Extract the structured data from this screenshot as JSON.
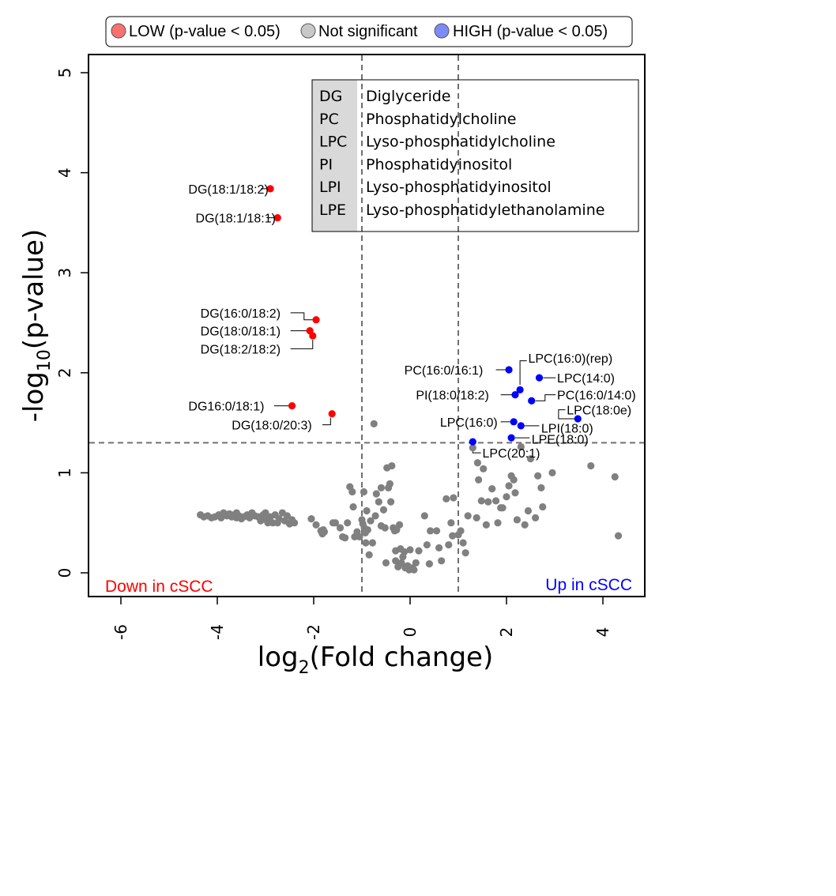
{
  "chart_data": {
    "type": "scatter",
    "title": "",
    "xlabel": "log2(Fold change)",
    "ylabel": "-log10(p-value)",
    "xlim": [
      -6.6,
      5.0
    ],
    "ylim": [
      -0.25,
      5.2
    ],
    "xticks": [
      -6,
      -4,
      -2,
      0,
      2,
      4
    ],
    "yticks": [
      0,
      1,
      2,
      3,
      4,
      5
    ],
    "thresholds": {
      "x": [
        -1,
        1
      ],
      "y": 1.3
    },
    "grid": false,
    "legend_position": "top",
    "colors": {
      "low": "#ff0000",
      "high": "#0000ff",
      "ns": "#808080",
      "low_legend": "#f87171",
      "ns_legend": "#c8c8c8",
      "high_legend": "#7b8cf8"
    },
    "legend": [
      {
        "key": "low",
        "label": "LOW (p-value  < 0.05)"
      },
      {
        "key": "ns",
        "label": "Not significant"
      },
      {
        "key": "high",
        "label": "HIGH (p-value  < 0.05)"
      }
    ],
    "corner_labels": {
      "left": "Down in cSCC",
      "right": "Up in cSCC"
    },
    "abbreviations": [
      {
        "abbr": "DG",
        "name": "Diglyceride"
      },
      {
        "abbr": "PC",
        "name": "Phosphatidylcholine"
      },
      {
        "abbr": "LPC",
        "name": "Lyso-phosphatidylcholine"
      },
      {
        "abbr": "PI",
        "name": "Phosphatidyinositol"
      },
      {
        "abbr": "LPI",
        "name": "Lyso-phosphatidyinositol"
      },
      {
        "abbr": "LPE",
        "name": "Lyso-phosphatidylethanolamine"
      }
    ],
    "series": [
      {
        "name": "LOW (p-value  < 0.05)",
        "points": [
          {
            "label": "DG(18:1/18:2)",
            "x": -2.9,
            "y": 3.84
          },
          {
            "label": "DG(18:1/18:1)",
            "x": -2.75,
            "y": 3.55
          },
          {
            "label": "DG(16:0/18:2)",
            "x": -1.95,
            "y": 2.53
          },
          {
            "label": "DG(18:0/18:1)",
            "x": -2.08,
            "y": 2.42
          },
          {
            "label": "DG(18:2/18:2)",
            "x": -2.02,
            "y": 2.37
          },
          {
            "label": "DG16:0/18:1)",
            "x": -2.45,
            "y": 1.67
          },
          {
            "label": "DG(18:0/20:3)",
            "x": -1.62,
            "y": 1.59
          }
        ]
      },
      {
        "name": "HIGH (p-value  < 0.05)",
        "points": [
          {
            "label": "PC(16:0/16:1)",
            "x": 2.05,
            "y": 2.03
          },
          {
            "label": "LPC(16:0)(rep)",
            "x": 2.28,
            "y": 1.83
          },
          {
            "label": "LPC(14:0)",
            "x": 2.68,
            "y": 1.95
          },
          {
            "label": "PI(18:0/18:2)",
            "x": 2.18,
            "y": 1.78
          },
          {
            "label": "PC(16:0/14:0)",
            "x": 2.52,
            "y": 1.72
          },
          {
            "label": "LPC(18:0e)",
            "x": 3.48,
            "y": 1.54
          },
          {
            "label": "LPC(16:0)",
            "x": 2.15,
            "y": 1.51
          },
          {
            "label": "LPI(18:0)",
            "x": 2.3,
            "y": 1.47
          },
          {
            "label": "LPE(18:0)",
            "x": 2.1,
            "y": 1.35
          },
          {
            "label": "LPC(20:1)",
            "x": 1.3,
            "y": 1.31
          }
        ]
      },
      {
        "name": "Not significant",
        "points": [
          [
            -4.35,
            0.58
          ],
          [
            -4.28,
            0.56
          ],
          [
            -4.2,
            0.57
          ],
          [
            -4.12,
            0.55
          ],
          [
            -4.05,
            0.56
          ],
          [
            -3.97,
            0.58
          ],
          [
            -3.92,
            0.55
          ],
          [
            -3.87,
            0.6
          ],
          [
            -3.8,
            0.57
          ],
          [
            -3.75,
            0.59
          ],
          [
            -3.7,
            0.56
          ],
          [
            -3.65,
            0.58
          ],
          [
            -3.6,
            0.55
          ],
          [
            -3.55,
            0.57
          ],
          [
            -3.5,
            0.54
          ],
          [
            -3.45,
            0.56
          ],
          [
            -3.38,
            0.58
          ],
          [
            -3.33,
            0.55
          ],
          [
            -3.28,
            0.6
          ],
          [
            -3.22,
            0.57
          ],
          [
            -3.15,
            0.56
          ],
          [
            -3.1,
            0.52
          ],
          [
            -3.0,
            0.6
          ],
          [
            -2.98,
            0.53
          ],
          [
            -2.9,
            0.56
          ],
          [
            -2.85,
            0.5
          ],
          [
            -2.8,
            0.58
          ],
          [
            -2.72,
            0.54
          ],
          [
            -2.65,
            0.6
          ],
          [
            -2.6,
            0.52
          ],
          [
            -2.55,
            0.57
          ],
          [
            -2.5,
            0.49
          ],
          [
            -2.45,
            0.53
          ],
          [
            -2.4,
            0.5
          ],
          [
            -2.05,
            0.54
          ],
          [
            -1.95,
            0.48
          ],
          [
            -1.85,
            0.42
          ],
          [
            -1.82,
            0.39
          ],
          [
            -1.8,
            0.43
          ],
          [
            -1.78,
            0.41
          ],
          [
            -1.6,
            0.5
          ],
          [
            -1.55,
            0.5
          ],
          [
            -1.45,
            0.45
          ],
          [
            -1.4,
            0.36
          ],
          [
            -1.35,
            0.35
          ],
          [
            -1.25,
            0.86
          ],
          [
            -1.2,
            0.81
          ],
          [
            -1.18,
            0.66
          ],
          [
            -1.15,
            0.36
          ],
          [
            -1.1,
            0.41
          ],
          [
            -1.05,
            0.36
          ],
          [
            -1.0,
            0.53
          ],
          [
            -0.98,
            0.49
          ],
          [
            -0.96,
            0.81
          ],
          [
            -0.95,
            0.45
          ],
          [
            -0.93,
            0.4
          ],
          [
            -0.92,
            0.3
          ],
          [
            -0.9,
            0.62
          ],
          [
            -0.88,
            0.43
          ],
          [
            -0.85,
            0.18
          ],
          [
            -0.82,
            0.52
          ],
          [
            -0.78,
            0.3
          ],
          [
            -0.75,
            1.49
          ],
          [
            -0.72,
            0.57
          ],
          [
            -0.7,
            0.79
          ],
          [
            -0.65,
            0.71
          ],
          [
            -0.6,
            0.85
          ],
          [
            -0.55,
            0.63
          ],
          [
            -0.52,
            0.45
          ],
          [
            -0.5,
            0.1
          ],
          [
            -0.48,
            1.05
          ],
          [
            -0.45,
            0.85
          ],
          [
            -0.42,
            0.89
          ],
          [
            -0.4,
            0.71
          ],
          [
            -0.38,
            1.07
          ],
          [
            -0.35,
            0.45
          ],
          [
            -0.32,
            0.42
          ],
          [
            -0.3,
            0.12
          ],
          [
            -0.28,
            0.43
          ],
          [
            -0.25,
            0.06
          ],
          [
            -0.22,
            0.48
          ],
          [
            -0.2,
            0.24
          ],
          [
            -0.18,
            0.1
          ],
          [
            -0.15,
            0.16
          ],
          [
            -0.12,
            0.21
          ],
          [
            -0.1,
            0.05
          ],
          [
            -0.05,
            0.07
          ],
          [
            -0.02,
            0.03
          ],
          [
            0.0,
            0.23
          ],
          [
            0.02,
            0.04
          ],
          [
            0.05,
            0.05
          ],
          [
            0.08,
            0.03
          ],
          [
            0.12,
            0.1
          ],
          [
            0.18,
            0.22
          ],
          [
            0.3,
            0.57
          ],
          [
            0.35,
            0.28
          ],
          [
            0.4,
            0.09
          ],
          [
            0.42,
            0.42
          ],
          [
            0.55,
            0.42
          ],
          [
            0.65,
            0.12
          ],
          [
            0.75,
            0.74
          ],
          [
            0.8,
            0.28
          ],
          [
            0.85,
            0.5
          ],
          [
            0.88,
            0.37
          ],
          [
            0.9,
            0.75
          ],
          [
            1.0,
            0.38
          ],
          [
            1.05,
            0.42
          ],
          [
            1.1,
            0.3
          ],
          [
            1.2,
            0.57
          ],
          [
            1.3,
            1.25
          ],
          [
            1.38,
            0.55
          ],
          [
            1.42,
            0.93
          ],
          [
            1.48,
            0.72
          ],
          [
            1.52,
            1.04
          ],
          [
            1.58,
            0.48
          ],
          [
            1.62,
            0.71
          ],
          [
            1.7,
            0.84
          ],
          [
            1.78,
            0.72
          ],
          [
            1.82,
            0.5
          ],
          [
            1.88,
            0.65
          ],
          [
            1.92,
            0.65
          ],
          [
            2.0,
            0.76
          ],
          [
            2.05,
            0.87
          ],
          [
            2.1,
            0.97
          ],
          [
            2.15,
            0.93
          ],
          [
            2.18,
            0.8
          ],
          [
            2.22,
            0.53
          ],
          [
            2.3,
            1.26
          ],
          [
            2.38,
            0.48
          ],
          [
            2.45,
            0.62
          ],
          [
            2.5,
            1.14
          ],
          [
            2.6,
            0.55
          ],
          [
            2.65,
            0.97
          ],
          [
            2.72,
            0.85
          ],
          [
            2.75,
            0.66
          ],
          [
            2.95,
            1.0
          ],
          [
            3.75,
            1.07
          ],
          [
            4.25,
            0.96
          ],
          [
            4.32,
            0.37
          ],
          [
            1.4,
            1.1
          ],
          [
            -0.6,
            0.47
          ],
          [
            -0.3,
            0.22
          ],
          [
            0.6,
            0.25
          ],
          [
            1.15,
            0.2
          ],
          [
            -1.3,
            0.5
          ],
          [
            -3.05,
            0.58
          ],
          [
            -2.75,
            0.5
          ],
          [
            -2.95,
            0.5
          ],
          [
            -3.6,
            0.6
          ],
          [
            -3.35,
            0.56
          ]
        ]
      }
    ],
    "point_labels": [
      {
        "text": "DG(18:1/18:2)",
        "tx": -4.6,
        "ty": 3.84,
        "anchor": "start",
        "leader": [
          [
            -3.1,
            3.84
          ],
          [
            -2.97,
            3.84
          ]
        ]
      },
      {
        "text": "DG(18:1/18:1)",
        "tx": -4.45,
        "ty": 3.55,
        "anchor": "start",
        "leader": [
          [
            -2.98,
            3.55
          ],
          [
            -2.82,
            3.55
          ]
        ]
      },
      {
        "text": "DG(16:0/18:2)",
        "tx": -4.35,
        "ty": 2.6,
        "anchor": "start",
        "leader": [
          [
            -2.48,
            2.6
          ],
          [
            -2.2,
            2.6
          ],
          [
            -2.2,
            2.53
          ],
          [
            -2.0,
            2.53
          ]
        ]
      },
      {
        "text": "DG(18:0/18:1)",
        "tx": -4.35,
        "ty": 2.42,
        "anchor": "start",
        "leader": [
          [
            -2.48,
            2.42
          ],
          [
            -2.13,
            2.42
          ]
        ]
      },
      {
        "text": "DG(18:2/18:2)",
        "tx": -4.35,
        "ty": 2.24,
        "anchor": "start",
        "leader": [
          [
            -2.48,
            2.24
          ],
          [
            -2.02,
            2.24
          ],
          [
            -2.02,
            2.33
          ]
        ]
      },
      {
        "text": "DG16:0/18:1)",
        "tx": -4.6,
        "ty": 1.67,
        "anchor": "start",
        "leader": [
          [
            -2.82,
            1.67
          ],
          [
            -2.52,
            1.67
          ]
        ]
      },
      {
        "text": "DG(18:0/20:3)",
        "tx": -3.7,
        "ty": 1.48,
        "anchor": "start",
        "leader": [
          [
            -1.82,
            1.48
          ],
          [
            -1.65,
            1.48
          ],
          [
            -1.65,
            1.55
          ]
        ]
      },
      {
        "text": "PC(16:0/16:1)",
        "tx": -0.12,
        "ty": 2.03,
        "anchor": "start",
        "leader": [
          [
            1.78,
            2.03
          ],
          [
            1.98,
            2.03
          ]
        ]
      },
      {
        "text": "LPC(16:0)(rep)",
        "tx": 2.45,
        "ty": 2.15,
        "anchor": "start",
        "leader": [
          [
            2.42,
            2.12
          ],
          [
            2.28,
            2.12
          ],
          [
            2.28,
            1.88
          ]
        ]
      },
      {
        "text": "LPC(14:0)",
        "tx": 3.05,
        "ty": 1.95,
        "anchor": "start",
        "leader": [
          [
            2.76,
            1.95
          ],
          [
            3.02,
            1.95
          ]
        ]
      },
      {
        "text": "PI(18:0/18:2)",
        "tx": 0.12,
        "ty": 1.78,
        "anchor": "start",
        "leader": [
          [
            1.88,
            1.78
          ],
          [
            2.12,
            1.78
          ]
        ]
      },
      {
        "text": "PC(16:0/14:0)",
        "tx": 3.05,
        "ty": 1.78,
        "anchor": "start",
        "leader": [
          [
            2.6,
            1.72
          ],
          [
            2.8,
            1.72
          ],
          [
            2.8,
            1.78
          ],
          [
            3.02,
            1.78
          ]
        ]
      },
      {
        "text": "LPC(18:0e)",
        "tx": 3.25,
        "ty": 1.63,
        "anchor": "start",
        "leader": [
          [
            3.41,
            1.54
          ],
          [
            3.08,
            1.54
          ],
          [
            3.08,
            1.63
          ],
          [
            3.22,
            1.63
          ]
        ]
      },
      {
        "text": "LPC(16:0)",
        "tx": 0.62,
        "ty": 1.51,
        "anchor": "start",
        "leader": [
          [
            1.88,
            1.51
          ],
          [
            2.08,
            1.51
          ]
        ]
      },
      {
        "text": "LPI(18:0)",
        "tx": 2.72,
        "ty": 1.45,
        "anchor": "start",
        "leader": [
          [
            2.38,
            1.47
          ],
          [
            2.68,
            1.47
          ]
        ]
      },
      {
        "text": "LPE(18:0)",
        "tx": 2.52,
        "ty": 1.34,
        "anchor": "start",
        "leader": [
          [
            2.18,
            1.35
          ],
          [
            2.48,
            1.35
          ]
        ]
      },
      {
        "text": "LPC(20:1)",
        "tx": 1.5,
        "ty": 1.2,
        "anchor": "start",
        "leader": [
          [
            1.3,
            1.28
          ],
          [
            1.3,
            1.2
          ],
          [
            1.47,
            1.2
          ]
        ]
      }
    ]
  }
}
